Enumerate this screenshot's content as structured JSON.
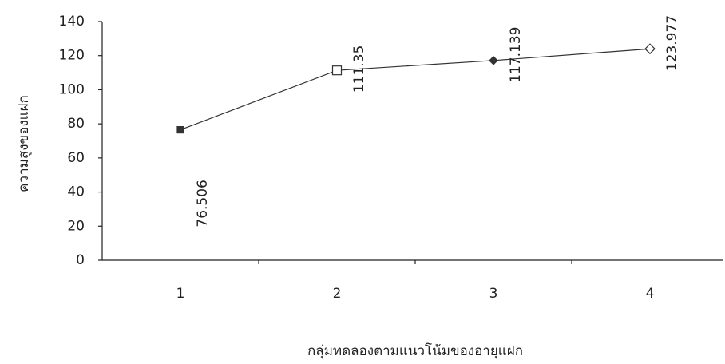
{
  "chart_data": {
    "type": "line",
    "x_label": "กลุ่มทดลองตามแนวโน้มของอายุแฝก",
    "y_label": "ความสูงของแฝก",
    "categories": [
      "1",
      "2",
      "3",
      "4"
    ],
    "series": [
      {
        "color": "#333333",
        "values": [
          76.506,
          111.35,
          117.139,
          123.977
        ],
        "markers": [
          "square-filled",
          "square-open",
          "diamond-filled",
          "diamond-open"
        ]
      }
    ],
    "ylim": [
      0,
      140
    ],
    "yticks": [
      0,
      20,
      40,
      60,
      80,
      100,
      120,
      140
    ],
    "grid": false
  }
}
